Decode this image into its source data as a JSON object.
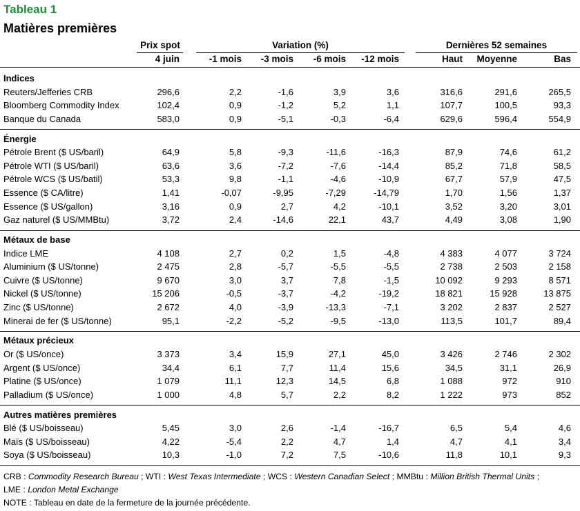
{
  "title": "Tableau 1",
  "subtitle": "Matières premières",
  "headers": {
    "spot_group": "Prix spot",
    "variation_group": "Variation (%)",
    "weeks_group": "Dernières 52 semaines",
    "cols": [
      "4 juin",
      "-1 mois",
      "-3 mois",
      "-6 mois",
      "-12 mois",
      "Haut",
      "Moyenne",
      "Bas"
    ]
  },
  "sections": [
    {
      "name": "Indices",
      "rows": [
        {
          "label": "Reuters/Jefferies CRB",
          "values": [
            "296,6",
            "2,2",
            "-1,6",
            "3,9",
            "3,6",
            "316,6",
            "291,6",
            "265,5"
          ]
        },
        {
          "label": "Bloomberg Commodity Index",
          "values": [
            "102,4",
            "0,9",
            "-1,2",
            "5,2",
            "1,1",
            "107,7",
            "100,5",
            "93,3"
          ]
        },
        {
          "label": "Banque du Canada",
          "values": [
            "583,0",
            "0,9",
            "-5,1",
            "-0,3",
            "-6,4",
            "629,6",
            "596,4",
            "554,9"
          ]
        }
      ]
    },
    {
      "name": "Énergie",
      "rows": [
        {
          "label": "Pétrole Brent ($ US/baril)",
          "values": [
            "64,9",
            "5,8",
            "-9,3",
            "-11,6",
            "-16,3",
            "87,9",
            "74,6",
            "61,2"
          ]
        },
        {
          "label": "Pétrole WTI ($ US/baril)",
          "values": [
            "63,6",
            "3,6",
            "-7,2",
            "-7,6",
            "-14,4",
            "85,2",
            "71,8",
            "58,5"
          ]
        },
        {
          "label": "Pétrole WCS ($ US/batil)",
          "values": [
            "53,3",
            "9,8",
            "-1,1",
            "-4,6",
            "-10,9",
            "67,7",
            "57,9",
            "47,5"
          ]
        },
        {
          "label": "Essence ($ CA/litre)",
          "values": [
            "1,41",
            "-0,07",
            "-9,95",
            "-7,29",
            "-14,79",
            "1,70",
            "1,56",
            "1,37"
          ]
        },
        {
          "label": "Essence ($ US/gallon)",
          "values": [
            "3,16",
            "0,9",
            "2,7",
            "4,2",
            "-10,1",
            "3,52",
            "3,20",
            "3,01"
          ]
        },
        {
          "label": "Gaz naturel ($ US/MMBtu)",
          "values": [
            "3,72",
            "2,4",
            "-14,6",
            "22,1",
            "43,7",
            "4,49",
            "3,08",
            "1,90"
          ]
        }
      ]
    },
    {
      "name": "Métaux de base",
      "rows": [
        {
          "label": "Indice LME",
          "values": [
            "4 108",
            "2,7",
            "0,2",
            "1,5",
            "-4,8",
            "4 383",
            "4 077",
            "3 724"
          ]
        },
        {
          "label": "Aluminium ($ US/tonne)",
          "values": [
            "2 475",
            "2,8",
            "-5,7",
            "-5,5",
            "-5,5",
            "2 738",
            "2 503",
            "2 158"
          ]
        },
        {
          "label": "Cuivre ($ US/tonne)",
          "values": [
            "9 670",
            "3,0",
            "3,7",
            "7,8",
            "-1,5",
            "10 092",
            "9 293",
            "8 571"
          ]
        },
        {
          "label": "Nickel ($ US/tonne)",
          "values": [
            "15 206",
            "-0,5",
            "-3,7",
            "-4,2",
            "-19,2",
            "18 821",
            "15 928",
            "13 875"
          ]
        },
        {
          "label": "Zinc ($ US/tonne)",
          "values": [
            "2 672",
            "4,0",
            "-3,9",
            "-13,3",
            "-7,1",
            "3 202",
            "2 837",
            "2 527"
          ]
        },
        {
          "label": "Minerai de fer ($ US/tonne)",
          "values": [
            "95,1",
            "-2,2",
            "-5,2",
            "-9,5",
            "-13,0",
            "113,5",
            "101,7",
            "89,4"
          ]
        }
      ]
    },
    {
      "name": "Métaux précieux",
      "rows": [
        {
          "label": "Or ($ US/once)",
          "values": [
            "3 373",
            "3,4",
            "15,9",
            "27,1",
            "45,0",
            "3 426",
            "2 746",
            "2 302"
          ]
        },
        {
          "label": "Argent ($ US/once)",
          "values": [
            "34,4",
            "6,1",
            "7,7",
            "11,4",
            "15,6",
            "34,5",
            "31,1",
            "26,9"
          ]
        },
        {
          "label": "Platine ($ US/once)",
          "values": [
            "1 079",
            "11,1",
            "12,3",
            "14,5",
            "6,8",
            "1 088",
            "972",
            "910"
          ]
        },
        {
          "label": "Palladium ($ US/once)",
          "values": [
            "1 000",
            "4,8",
            "5,7",
            "2,2",
            "8,2",
            "1 222",
            "973",
            "852"
          ]
        }
      ]
    },
    {
      "name": "Autres matières premières",
      "rows": [
        {
          "label": "Blé ($ US/boisseau)",
          "values": [
            "5,45",
            "3,0",
            "2,6",
            "-1,4",
            "-16,7",
            "6,5",
            "5,4",
            "4,6"
          ]
        },
        {
          "label": "Maïs ($ US/boisseau)",
          "values": [
            "4,22",
            "-5,4",
            "2,2",
            "4,7",
            "1,4",
            "4,7",
            "4,1",
            "3,4"
          ]
        },
        {
          "label": "Soya ($ US/boisseau)",
          "values": [
            "10,3",
            "-1,0",
            "7,2",
            "7,5",
            "-10,6",
            "11,8",
            "10,1",
            "9,3"
          ]
        }
      ]
    }
  ],
  "footnotes": {
    "line1": [
      {
        "text": "CRB : ",
        "italic": false
      },
      {
        "text": "Commodity Research Bureau",
        "italic": true
      },
      {
        "text": " ; WTI : ",
        "italic": false
      },
      {
        "text": "West Texas Intermediate",
        "italic": true
      },
      {
        "text": " ; WCS : ",
        "italic": false
      },
      {
        "text": "Western Canadian Select",
        "italic": true
      },
      {
        "text": " ; MMBtu : ",
        "italic": false
      },
      {
        "text": "Million British Thermal Units",
        "italic": true
      },
      {
        "text": " ;",
        "italic": false
      }
    ],
    "line2": [
      {
        "text": "LME : ",
        "italic": false
      },
      {
        "text": "London Metal Exchange",
        "italic": true
      }
    ],
    "line3": "NOTE : Tableau en date de la fermeture de la journée précédente."
  }
}
